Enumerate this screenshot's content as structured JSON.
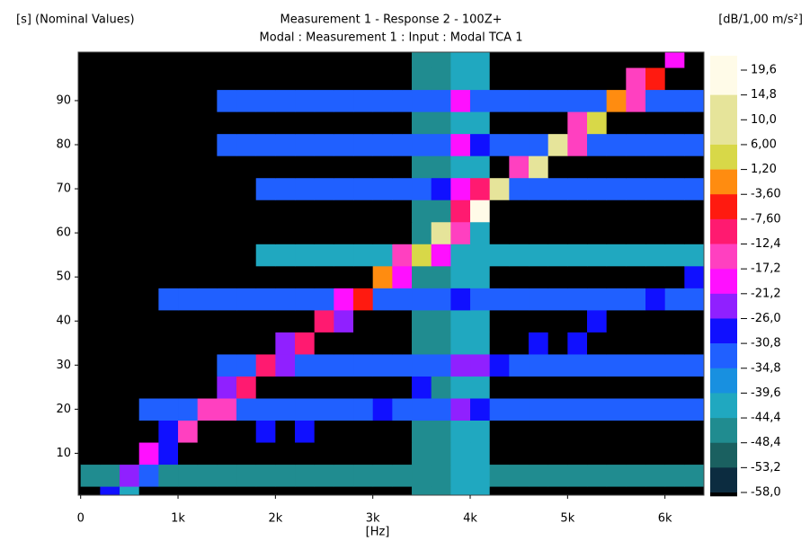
{
  "chart_data": {
    "type": "heatmap",
    "title": "Measurement 1 - Response 2 - 100Z+",
    "subtitle": "Modal : Measurement 1 : Input : Modal TCA 1",
    "ylabel": "[s] (Nominal Values)",
    "xlabel": "[Hz]",
    "xlim": [
      -25,
      6400
    ],
    "ylim": [
      0.5,
      101
    ],
    "xticks": [
      0,
      {
        "value": 1000,
        "label": "1k"
      },
      {
        "value": 2000,
        "label": "2k"
      },
      {
        "value": 3000,
        "label": "3k"
      },
      {
        "value": 4000,
        "label": "4k"
      },
      {
        "value": 5000,
        "label": "5k"
      },
      {
        "value": 6000,
        "label": "6k"
      }
    ],
    "yticks": [
      10,
      20,
      30,
      40,
      50,
      60,
      70,
      80,
      90
    ],
    "xbins": [
      0,
      200,
      400,
      600,
      800,
      1000,
      1200,
      1400,
      1600,
      1800,
      2000,
      2200,
      2400,
      2600,
      2800,
      3000,
      3200,
      3400,
      3600,
      3800,
      4000,
      4200,
      4400,
      4600,
      4800,
      5000,
      5200,
      5400,
      5600,
      5800,
      6000,
      6200,
      6400
    ],
    "ybins": [
      0.5,
      2.5,
      7.5,
      12.5,
      17.5,
      22.5,
      27.5,
      32.5,
      37.5,
      42.5,
      47.5,
      52.5,
      57.5,
      62.5,
      67.5,
      72.5,
      77.5,
      82.5,
      87.5,
      92.5,
      97.5,
      101
    ],
    "z": [
      [
        -60,
        -28,
        -40,
        -60,
        -60,
        -60,
        -60,
        -60,
        -60,
        -60,
        -60,
        -60,
        -60,
        -60,
        -60,
        -60,
        -60,
        -46,
        -46,
        -42,
        -42,
        -60,
        -60,
        -60,
        -60,
        -60,
        -60,
        -60,
        -60,
        -60,
        -60,
        -60
      ],
      [
        -48,
        -48,
        -22,
        -34,
        -48,
        -48,
        -48,
        -48,
        -48,
        -48,
        -48,
        -48,
        -48,
        -48,
        -48,
        -48,
        -48,
        -46,
        -46,
        -42,
        -42,
        -48,
        -48,
        -48,
        -48,
        -48,
        -48,
        -48,
        -48,
        -48,
        -48,
        -48
      ],
      [
        -60,
        -60,
        -60,
        -18,
        -30,
        -60,
        -60,
        -60,
        -60,
        -60,
        -60,
        -60,
        -60,
        -60,
        -60,
        -60,
        -60,
        -46,
        -46,
        -42,
        -42,
        -60,
        -60,
        -60,
        -60,
        -60,
        -60,
        -60,
        -60,
        -60,
        -60,
        -60
      ],
      [
        -60,
        -60,
        -60,
        -60,
        -30,
        -16,
        -60,
        -60,
        -60,
        -28,
        -60,
        -28,
        -60,
        -60,
        -60,
        -60,
        -60,
        -46,
        -46,
        -42,
        -42,
        -60,
        -60,
        -60,
        -60,
        -60,
        -60,
        -60,
        -60,
        -60,
        -60,
        -60
      ],
      [
        -60,
        -60,
        -60,
        -34,
        -34,
        -34,
        -14,
        -15,
        -34,
        -34,
        -34,
        -34,
        -34,
        -34,
        -34,
        -28,
        -34,
        -34,
        -34,
        -25,
        -30,
        -34,
        -34,
        -34,
        -34,
        -34,
        -34,
        -34,
        -34,
        -34,
        -34,
        -34
      ],
      [
        -60,
        -60,
        -60,
        -60,
        -60,
        -60,
        -60,
        -26,
        -12,
        -60,
        -60,
        -60,
        -60,
        -60,
        -60,
        -60,
        -60,
        -28,
        -46,
        -42,
        -42,
        -60,
        -60,
        -60,
        -60,
        -60,
        -60,
        -60,
        -60,
        -60,
        -60,
        -60
      ],
      [
        -60,
        -60,
        -60,
        -60,
        -60,
        -60,
        -60,
        -34,
        -34,
        -10,
        -24,
        -34,
        -34,
        -34,
        -34,
        -34,
        -34,
        -34,
        -34,
        -22,
        -22,
        -30,
        -34,
        -34,
        -34,
        -34,
        -34,
        -34,
        -34,
        -34,
        -34,
        -34
      ],
      [
        -60,
        -60,
        -60,
        -60,
        -60,
        -60,
        -60,
        -60,
        -60,
        -60,
        -24,
        -10,
        -60,
        -60,
        -60,
        -60,
        -60,
        -46,
        -46,
        -42,
        -42,
        -60,
        -60,
        -28,
        -60,
        -28,
        -60,
        -60,
        -60,
        -60,
        -60,
        -60
      ],
      [
        -60,
        -60,
        -60,
        -60,
        -60,
        -60,
        -60,
        -60,
        -60,
        -60,
        -60,
        -60,
        -8,
        -22,
        -60,
        -60,
        -60,
        -46,
        -46,
        -42,
        -42,
        -60,
        -60,
        -60,
        -60,
        -60,
        -28,
        -60,
        -60,
        -60,
        -60,
        -60
      ],
      [
        -60,
        -60,
        -60,
        -60,
        -34,
        -34,
        -34,
        -34,
        -34,
        -34,
        -34,
        -34,
        -34,
        -20,
        -6,
        -34,
        -34,
        -34,
        -34,
        -30,
        -34,
        -34,
        -34,
        -34,
        -34,
        -34,
        -34,
        -34,
        -34,
        -28,
        -34,
        -34
      ],
      [
        -60,
        -60,
        -60,
        -60,
        -60,
        -60,
        -60,
        -60,
        -60,
        -60,
        -60,
        -60,
        -60,
        -60,
        -60,
        -2,
        -18,
        -46,
        -46,
        -42,
        -42,
        -60,
        -60,
        -60,
        -60,
        -60,
        -60,
        -60,
        -60,
        -60,
        -60,
        -28
      ],
      [
        -60,
        -60,
        -60,
        -60,
        -60,
        -60,
        -60,
        -60,
        -60,
        -42,
        -42,
        -42,
        -42,
        -42,
        -42,
        -42,
        -16,
        4,
        -20,
        -42,
        -42,
        -42,
        -42,
        -42,
        -42,
        -42,
        -42,
        -42,
        -42,
        -42,
        -42,
        -42
      ],
      [
        -60,
        -60,
        -60,
        -60,
        -60,
        -60,
        -60,
        -60,
        -60,
        -60,
        -60,
        -60,
        -60,
        -60,
        -60,
        -60,
        -60,
        -46,
        10,
        -16,
        -42,
        -60,
        -60,
        -60,
        -60,
        -60,
        -60,
        -60,
        -60,
        -60,
        -60,
        -60
      ],
      [
        -60,
        -60,
        -60,
        -60,
        -60,
        -60,
        -60,
        -60,
        -60,
        -60,
        -60,
        -60,
        -60,
        -60,
        -60,
        -60,
        -60,
        -46,
        -46,
        -10,
        16,
        -60,
        -60,
        -60,
        -60,
        -60,
        -60,
        -60,
        -60,
        -60,
        -60,
        -60
      ],
      [
        -60,
        -60,
        -60,
        -60,
        -60,
        -60,
        -60,
        -60,
        -60,
        -34,
        -34,
        -34,
        -34,
        -34,
        -34,
        -34,
        -34,
        -34,
        -28,
        -20,
        -8,
        12,
        -34,
        -34,
        -34,
        -34,
        -34,
        -34,
        -34,
        -34,
        -34,
        -34
      ],
      [
        -60,
        -60,
        -60,
        -60,
        -60,
        -60,
        -60,
        -60,
        -60,
        -60,
        -60,
        -60,
        -60,
        -60,
        -60,
        -60,
        -60,
        -46,
        -46,
        -42,
        -42,
        -60,
        -14,
        8,
        -60,
        -60,
        -60,
        -60,
        -60,
        -60,
        -60,
        -60
      ],
      [
        -60,
        -60,
        -60,
        -60,
        -60,
        -60,
        -60,
        -34,
        -34,
        -34,
        -34,
        -34,
        -34,
        -34,
        -34,
        -34,
        -34,
        -34,
        -34,
        -20,
        -28,
        -34,
        -34,
        -34,
        6,
        -14,
        -34,
        -34,
        -34,
        -34,
        -34,
        -34
      ],
      [
        -60,
        -60,
        -60,
        -60,
        -60,
        -60,
        -60,
        -60,
        -60,
        -60,
        -60,
        -60,
        -60,
        -60,
        -60,
        -60,
        -60,
        -46,
        -46,
        -42,
        -42,
        -60,
        -60,
        -60,
        -60,
        -14,
        4,
        -60,
        -60,
        -60,
        -60,
        -60
      ],
      [
        -60,
        -60,
        -60,
        -60,
        -60,
        -60,
        -60,
        -34,
        -34,
        -34,
        -34,
        -34,
        -34,
        -34,
        -34,
        -34,
        -34,
        -34,
        -34,
        -20,
        -34,
        -34,
        -34,
        -34,
        -34,
        -34,
        -34,
        0,
        -14,
        -34,
        -34,
        -34
      ],
      [
        -60,
        -60,
        -60,
        -60,
        -60,
        -60,
        -60,
        -60,
        -60,
        -60,
        -60,
        -60,
        -60,
        -60,
        -60,
        -60,
        -60,
        -46,
        -46,
        -42,
        -42,
        -60,
        -60,
        -60,
        -60,
        -60,
        -60,
        -60,
        -16,
        -6,
        -60,
        -60
      ],
      [
        -60,
        -60,
        -60,
        -60,
        -60,
        -60,
        -60,
        -60,
        -60,
        -60,
        -60,
        -60,
        -60,
        -60,
        -60,
        -60,
        -60,
        -46,
        -46,
        -42,
        -42,
        -60,
        -60,
        -60,
        -60,
        -60,
        -60,
        -60,
        -60,
        -60,
        -20,
        -60
      ]
    ],
    "colorbar": {
      "label": "[dB/1,00 m/s²]",
      "ticks": [
        {
          "value": 19.6,
          "label": "19,6"
        },
        {
          "value": 14.8,
          "label": "14,8"
        },
        {
          "value": 10.0,
          "label": "10,0"
        },
        {
          "value": 6.0,
          "label": "6,00"
        },
        {
          "value": 1.2,
          "label": "1,20"
        },
        {
          "value": -3.6,
          "label": "-3,60"
        },
        {
          "value": -7.6,
          "label": "-7,60"
        },
        {
          "value": -12.4,
          "label": "-12,4"
        },
        {
          "value": -17.2,
          "label": "-17,2"
        },
        {
          "value": -21.2,
          "label": "-21,2"
        },
        {
          "value": -26.0,
          "label": "-26,0"
        },
        {
          "value": -30.8,
          "label": "-30,8"
        },
        {
          "value": -34.8,
          "label": "-34,8"
        },
        {
          "value": -39.6,
          "label": "-39,6"
        },
        {
          "value": -44.4,
          "label": "-44,4"
        },
        {
          "value": -48.4,
          "label": "-48,4"
        },
        {
          "value": -53.2,
          "label": "-53,2"
        },
        {
          "value": -58.0,
          "label": "-58,0"
        }
      ],
      "colors": [
        "#fffbe8",
        "#fffbe8",
        "#e6e49a",
        "#e6e49a",
        "#d8d848",
        "#ff8c10",
        "#ff1a10",
        "#ff1a70",
        "#ff40c0",
        "#ff10ff",
        "#9020ff",
        "#1010ff",
        "#2060ff",
        "#1890e0",
        "#20a8c0",
        "#208c90",
        "#1a6060",
        "#0c2c40",
        "#000000"
      ]
    }
  }
}
